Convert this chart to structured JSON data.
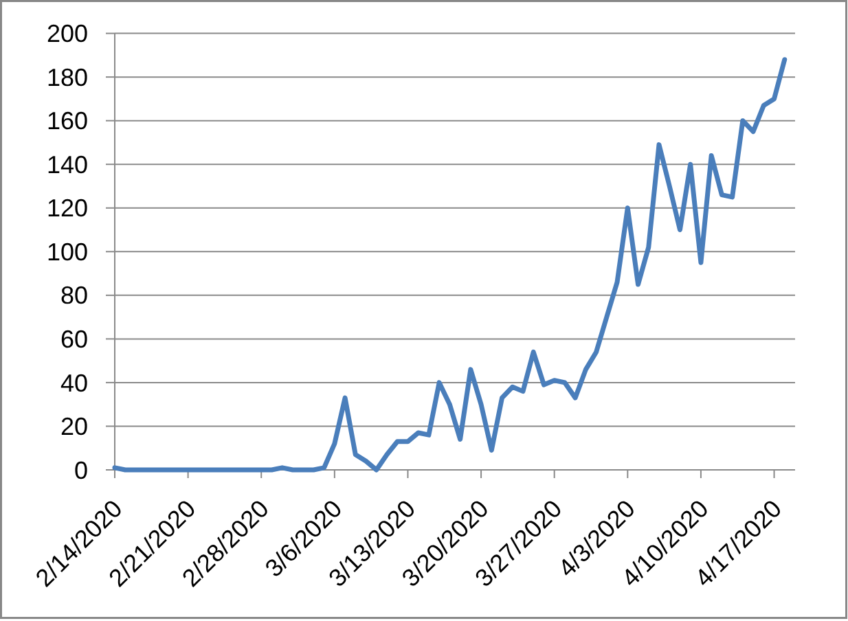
{
  "chart_data": {
    "type": "line",
    "color": "#4a7ebb",
    "x": [
      "2020-02-14",
      "2020-02-15",
      "2020-02-16",
      "2020-02-17",
      "2020-02-18",
      "2020-02-19",
      "2020-02-20",
      "2020-02-21",
      "2020-02-22",
      "2020-02-23",
      "2020-02-24",
      "2020-02-25",
      "2020-02-26",
      "2020-02-27",
      "2020-02-28",
      "2020-02-29",
      "2020-03-01",
      "2020-03-02",
      "2020-03-03",
      "2020-03-04",
      "2020-03-05",
      "2020-03-06",
      "2020-03-07",
      "2020-03-08",
      "2020-03-09",
      "2020-03-10",
      "2020-03-11",
      "2020-03-12",
      "2020-03-13",
      "2020-03-14",
      "2020-03-15",
      "2020-03-16",
      "2020-03-17",
      "2020-03-18",
      "2020-03-19",
      "2020-03-20",
      "2020-03-21",
      "2020-03-22",
      "2020-03-23",
      "2020-03-24",
      "2020-03-25",
      "2020-03-26",
      "2020-03-27",
      "2020-03-28",
      "2020-03-29",
      "2020-03-30",
      "2020-03-31",
      "2020-04-01",
      "2020-04-02",
      "2020-04-03",
      "2020-04-04",
      "2020-04-05",
      "2020-04-06",
      "2020-04-07",
      "2020-04-08",
      "2020-04-09",
      "2020-04-10",
      "2020-04-11",
      "2020-04-12",
      "2020-04-13",
      "2020-04-14",
      "2020-04-15",
      "2020-04-16",
      "2020-04-17",
      "2020-04-18"
    ],
    "values": [
      1,
      0,
      0,
      0,
      0,
      0,
      0,
      0,
      0,
      0,
      0,
      0,
      0,
      0,
      0,
      0,
      1,
      0,
      0,
      0,
      1,
      12,
      33,
      7,
      4,
      0,
      7,
      13,
      13,
      17,
      16,
      40,
      30,
      14,
      46,
      30,
      9,
      33,
      38,
      36,
      54,
      39,
      41,
      40,
      33,
      46,
      54,
      70,
      86,
      120,
      85,
      102,
      149,
      130,
      110,
      140,
      95,
      144,
      126,
      125,
      160,
      155,
      167,
      170,
      188
    ],
    "xlim": [
      "2020-02-14",
      "2020-04-19"
    ],
    "xticks": [
      {
        "value": "2020-02-14",
        "label": "2/14/2020"
      },
      {
        "value": "2020-02-21",
        "label": "2/21/2020"
      },
      {
        "value": "2020-02-28",
        "label": "2/28/2020"
      },
      {
        "value": "2020-03-06",
        "label": "3/6/2020"
      },
      {
        "value": "2020-03-13",
        "label": "3/13/2020"
      },
      {
        "value": "2020-03-20",
        "label": "3/20/2020"
      },
      {
        "value": "2020-03-27",
        "label": "3/27/2020"
      },
      {
        "value": "2020-04-03",
        "label": "4/3/2020"
      },
      {
        "value": "2020-04-10",
        "label": "4/10/2020"
      },
      {
        "value": "2020-04-17",
        "label": "4/17/2020"
      }
    ],
    "ylim": [
      0,
      200
    ],
    "yticks": [
      0,
      20,
      40,
      60,
      80,
      100,
      120,
      140,
      160,
      180,
      200
    ],
    "grid": "y"
  }
}
